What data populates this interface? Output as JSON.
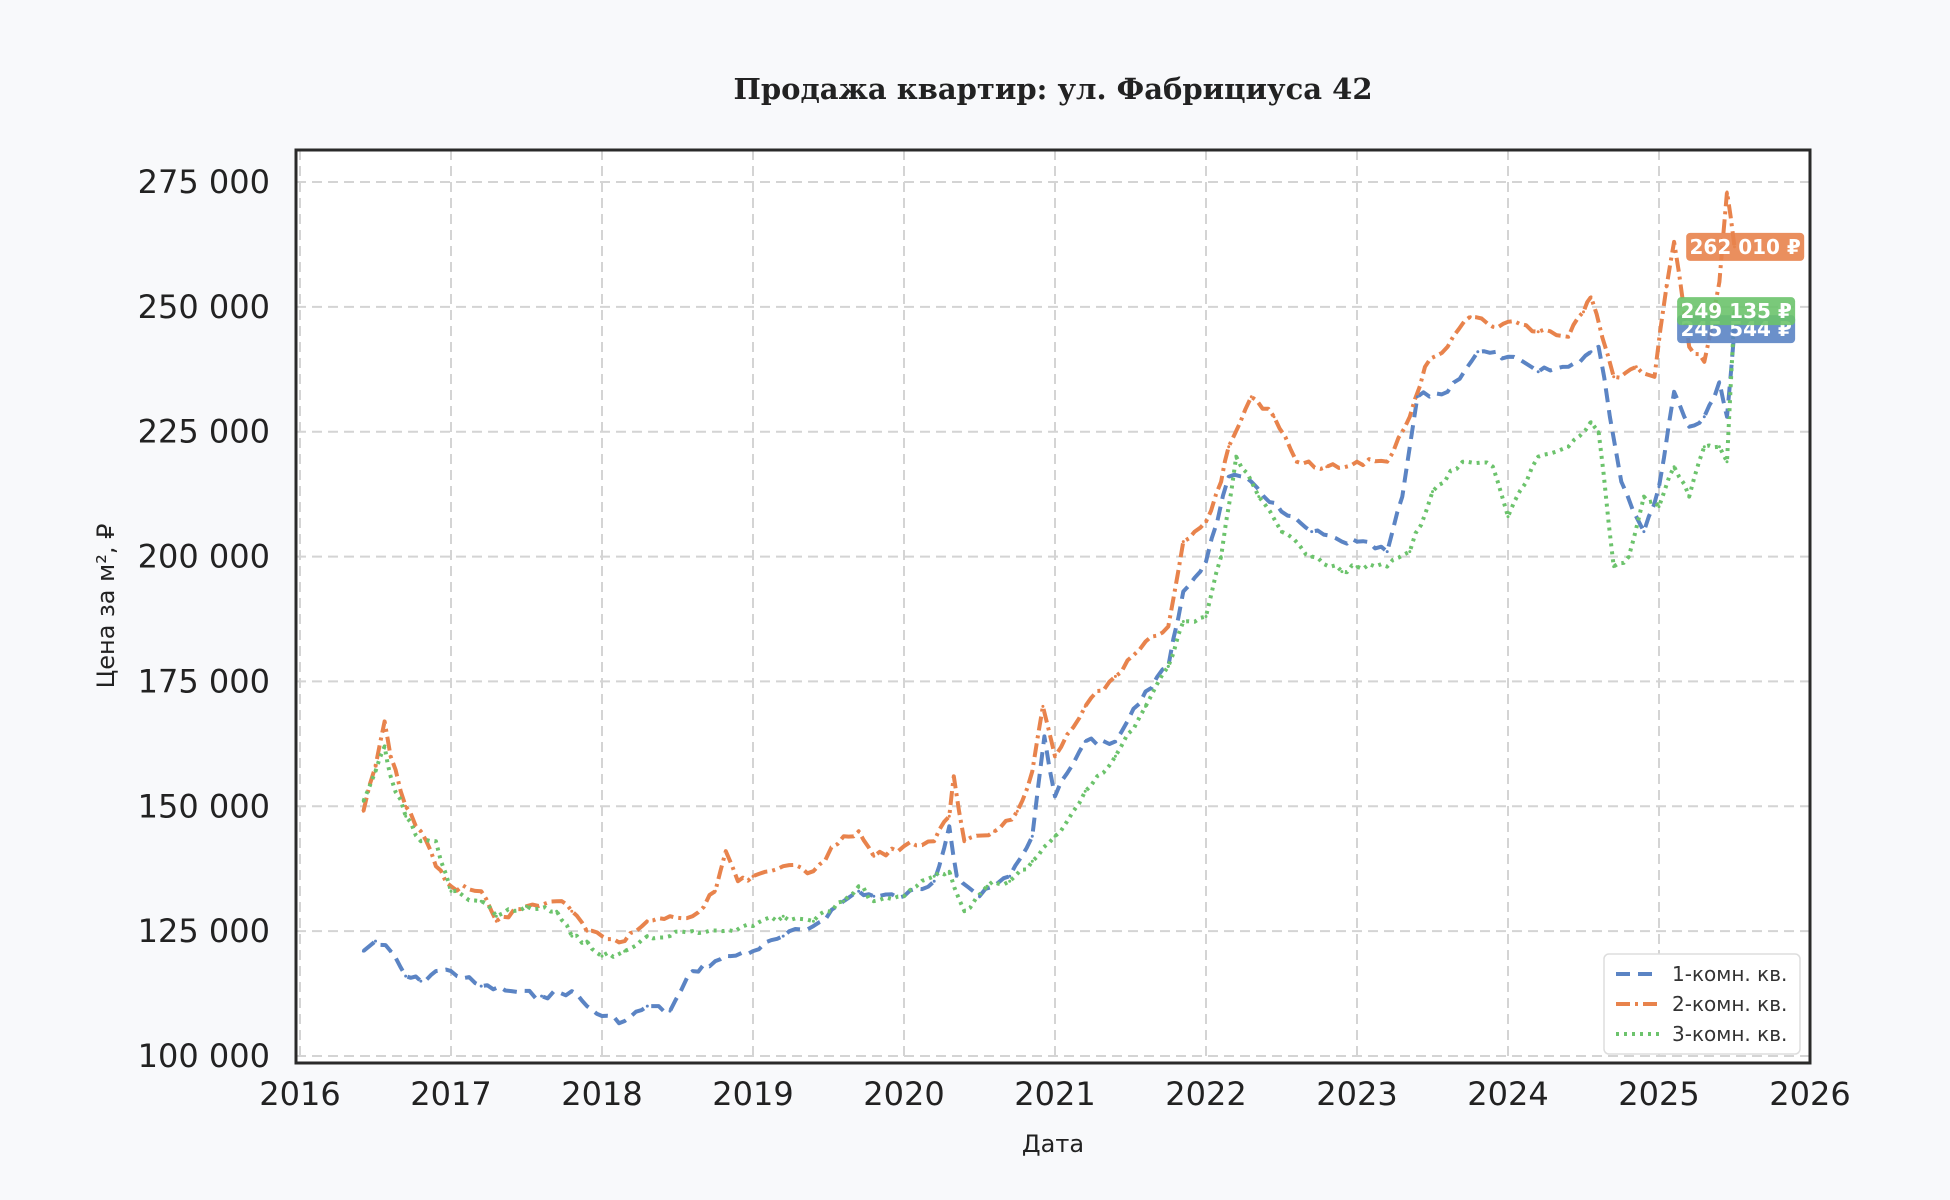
{
  "chart_data": {
    "type": "line",
    "title": "Продажа квартир: ул. Фабрициуса 42",
    "xlabel": "Дата",
    "ylabel": "Цена за м², ₽",
    "xlim": [
      2016,
      2026
    ],
    "ylim": [
      100000,
      275000
    ],
    "x_ticks": [
      "2016",
      "2017",
      "2018",
      "2019",
      "2020",
      "2021",
      "2022",
      "2023",
      "2024",
      "2025",
      "2026"
    ],
    "y_ticks": [
      "100 000",
      "125 000",
      "150 000",
      "175 000",
      "200 000",
      "225 000",
      "250 000",
      "275 000"
    ],
    "grid": true,
    "legend_position": "lower right",
    "series": [
      {
        "name": "1-комн. кв.",
        "color": "#5b84c4",
        "dash": "dashed",
        "x": [
          2016.42,
          2016.5,
          2016.6,
          2016.7,
          2016.8,
          2016.9,
          2017.0,
          2017.2,
          2017.4,
          2017.6,
          2017.8,
          2017.9,
          2018.0,
          2018.15,
          2018.3,
          2018.45,
          2018.6,
          2018.75,
          2018.85,
          2019.0,
          2019.2,
          2019.4,
          2019.6,
          2019.7,
          2019.8,
          2020.0,
          2020.2,
          2020.3,
          2020.35,
          2020.5,
          2020.7,
          2020.85,
          2020.93,
          2021.0,
          2021.2,
          2021.4,
          2021.6,
          2021.75,
          2021.85,
          2022.0,
          2022.15,
          2022.3,
          2022.5,
          2022.7,
          2022.9,
          2023.0,
          2023.2,
          2023.3,
          2023.4,
          2023.6,
          2023.8,
          2024.0,
          2024.2,
          2024.4,
          2024.55,
          2024.6,
          2024.75,
          2024.9,
          2025.0,
          2025.1,
          2025.2,
          2025.3,
          2025.4,
          2025.45,
          2025.5
        ],
        "y": [
          121000,
          123000,
          121000,
          116000,
          115000,
          117000,
          117000,
          114000,
          113000,
          112000,
          113000,
          110000,
          108000,
          107000,
          110000,
          109000,
          117000,
          119000,
          120000,
          121000,
          124000,
          126000,
          131000,
          133000,
          132000,
          132000,
          135000,
          146000,
          136000,
          132000,
          136000,
          144000,
          164000,
          152000,
          163000,
          163000,
          173000,
          178000,
          193000,
          199000,
          216000,
          215000,
          209000,
          205000,
          203000,
          203000,
          201000,
          212000,
          232000,
          233000,
          241000,
          240000,
          237000,
          238000,
          241000,
          242000,
          215000,
          205000,
          214000,
          233000,
          226000,
          228000,
          235000,
          228000,
          245544
        ]
      },
      {
        "name": "2-комн. кв.",
        "color": "#e8834c",
        "dash": "dashdot",
        "x": [
          2016.42,
          2016.5,
          2016.56,
          2016.6,
          2016.7,
          2016.8,
          2016.9,
          2017.0,
          2017.2,
          2017.3,
          2017.5,
          2017.7,
          2017.8,
          2017.9,
          2018.0,
          2018.15,
          2018.3,
          2018.45,
          2018.6,
          2018.75,
          2018.82,
          2018.9,
          2019.0,
          2019.2,
          2019.4,
          2019.6,
          2019.7,
          2019.8,
          2020.0,
          2020.2,
          2020.3,
          2020.33,
          2020.4,
          2020.6,
          2020.75,
          2020.85,
          2020.92,
          2021.0,
          2021.2,
          2021.4,
          2021.6,
          2021.75,
          2021.85,
          2022.0,
          2022.1,
          2022.15,
          2022.3,
          2022.45,
          2022.6,
          2022.8,
          2023.0,
          2023.2,
          2023.35,
          2023.45,
          2023.6,
          2023.75,
          2023.9,
          2024.0,
          2024.2,
          2024.4,
          2024.5,
          2024.55,
          2024.7,
          2024.85,
          2024.97,
          2025.05,
          2025.1,
          2025.2,
          2025.3,
          2025.4,
          2025.45,
          2025.5
        ],
        "y": [
          149000,
          158000,
          167000,
          160000,
          150000,
          145000,
          138000,
          134000,
          133000,
          127000,
          130000,
          131000,
          129000,
          125000,
          124000,
          123000,
          127000,
          128000,
          128000,
          133000,
          141000,
          135000,
          136000,
          138000,
          137000,
          144000,
          145000,
          140000,
          142000,
          143000,
          148000,
          156000,
          143000,
          145000,
          149000,
          157000,
          170000,
          160000,
          170000,
          176000,
          183000,
          186000,
          203000,
          207000,
          215000,
          222000,
          232000,
          228000,
          219000,
          218000,
          219000,
          219000,
          228000,
          238000,
          242000,
          248000,
          246000,
          247000,
          245000,
          244000,
          249000,
          252000,
          236000,
          238000,
          236000,
          254000,
          263000,
          242000,
          239000,
          255000,
          273000,
          262010
        ]
      },
      {
        "name": "3-комн. кв.",
        "color": "#6cc36c",
        "dash": "dotted",
        "x": [
          2016.42,
          2016.5,
          2016.56,
          2016.6,
          2016.7,
          2016.8,
          2016.9,
          2017.0,
          2017.2,
          2017.3,
          2017.5,
          2017.7,
          2017.8,
          2017.9,
          2018.0,
          2018.15,
          2018.3,
          2018.45,
          2018.6,
          2018.8,
          2019.0,
          2019.2,
          2019.4,
          2019.6,
          2019.7,
          2019.8,
          2020.0,
          2020.2,
          2020.3,
          2020.4,
          2020.55,
          2020.7,
          2020.85,
          2021.0,
          2021.2,
          2021.4,
          2021.6,
          2021.75,
          2021.85,
          2022.0,
          2022.1,
          2022.2,
          2022.35,
          2022.5,
          2022.7,
          2022.9,
          2023.0,
          2023.2,
          2023.35,
          2023.5,
          2023.7,
          2023.9,
          2024.0,
          2024.2,
          2024.4,
          2024.55,
          2024.6,
          2024.7,
          2024.8,
          2024.9,
          2025.0,
          2025.1,
          2025.2,
          2025.3,
          2025.4,
          2025.45,
          2025.5
        ],
        "y": [
          151000,
          157000,
          162000,
          156000,
          148000,
          143000,
          143000,
          133000,
          131000,
          128000,
          130000,
          129000,
          124000,
          123000,
          120000,
          121000,
          124000,
          124000,
          125000,
          125000,
          126000,
          128000,
          127000,
          131000,
          134000,
          131000,
          132000,
          136000,
          137000,
          129000,
          134000,
          135000,
          139000,
          144000,
          153000,
          160000,
          170000,
          178000,
          187000,
          188000,
          200000,
          220000,
          212000,
          205000,
          200000,
          197000,
          198000,
          198000,
          201000,
          213000,
          219000,
          218000,
          208000,
          220000,
          222000,
          227000,
          225000,
          198000,
          200000,
          212000,
          210000,
          218000,
          212000,
          222000,
          222000,
          219000,
          249135
        ]
      }
    ],
    "end_labels": [
      {
        "series": "2-комн. кв.",
        "text": "262 010 ₽",
        "value": 262010,
        "color": "#e8834c"
      },
      {
        "series": "1-комн. кв.",
        "text": "245 544 ₽",
        "value": 245544,
        "color": "#5b84c4"
      },
      {
        "series": "3-комн. кв.",
        "text": "249 135 ₽",
        "value": 249135,
        "color": "#6cc36c"
      }
    ]
  }
}
